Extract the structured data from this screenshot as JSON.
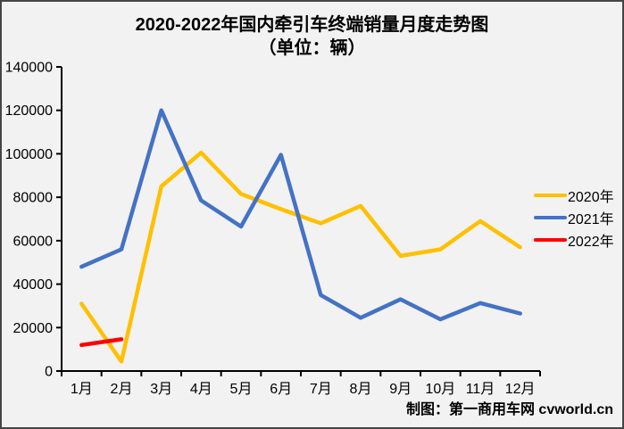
{
  "page": {
    "footer_credit": "制图：第一商用车网 cvworld.cn"
  },
  "chart_data": {
    "type": "line",
    "title": "2020-2022年国内牵引车终端销量月度走势图",
    "subtitle": "（单位：辆）",
    "unit": "辆",
    "categories": [
      "1月",
      "2月",
      "3月",
      "4月",
      "5月",
      "6月",
      "7月",
      "8月",
      "9月",
      "10月",
      "11月",
      "12月"
    ],
    "series": [
      {
        "name": "2020年",
        "color": "#FFC000",
        "values": [
          31000,
          4400,
          85000,
          100500,
          81500,
          74500,
          68000,
          76000,
          53000,
          56000,
          69000,
          57000
        ]
      },
      {
        "name": "2021年",
        "color": "#4472C4",
        "values": [
          48000,
          56000,
          120000,
          78500,
          66500,
          99500,
          35000,
          24500,
          33000,
          23800,
          31300,
          26500
        ]
      },
      {
        "name": "2022年",
        "color": "#FF0000",
        "values": [
          12000,
          14600,
          null,
          null,
          null,
          null,
          null,
          null,
          null,
          null,
          null,
          null
        ]
      }
    ],
    "ylim": [
      0,
      140000
    ],
    "ytick_step": 20000,
    "ytick_labels": [
      "0",
      "20000",
      "40000",
      "60000",
      "80000",
      "100000",
      "120000",
      "140000"
    ],
    "grid": false,
    "legend_position": "right",
    "axis_color": "#000000",
    "background_color": "#f2f2f2"
  }
}
